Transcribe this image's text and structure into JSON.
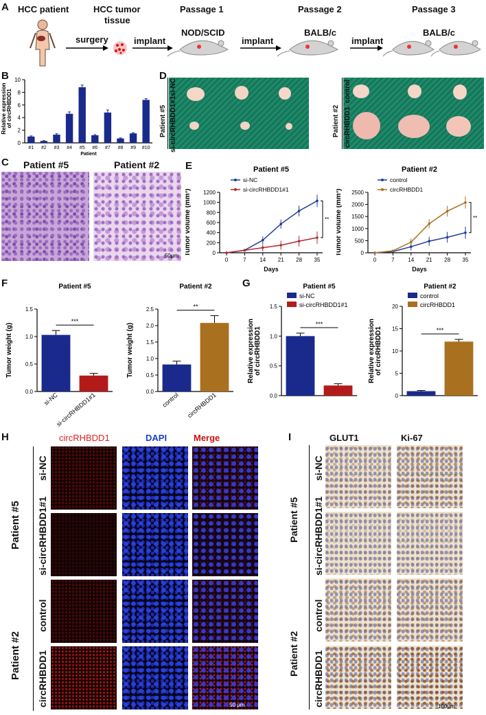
{
  "panels": {
    "a": "A",
    "b": "B",
    "c": "C",
    "d": "D",
    "e": "E",
    "f": "F",
    "g": "G",
    "h": "H",
    "i": "I"
  },
  "workflow": {
    "hcc_patient": "HCC patient",
    "hcc_tumor_tissue_1": "HCC tumor",
    "hcc_tumor_tissue_2": "tissue",
    "surgery": "surgery",
    "implant": "implant",
    "passage1": "Passage 1",
    "passage2": "Passage 2",
    "passage3": "Passage 3",
    "mouse1": "NOD/SCID",
    "mouse2": "BALB/c",
    "mouse3": "BALB/c"
  },
  "d_labels": {
    "patient5": "Patient #5",
    "sinc": "si-NC",
    "sicirc": "si-circRHBDD1#1",
    "patient2": "Patient #2",
    "control": "control",
    "circ": "circRHBDD1"
  },
  "c_labels": {
    "patient5": "Patient #5",
    "patient2": "Patient #2",
    "scale": "50μm"
  },
  "h_labels": {
    "col1": "circRHBDD1",
    "col2": "DAPI",
    "col3": "Merge",
    "patient5": "Patient #5",
    "patient2": "Patient #2",
    "row1": "si-NC",
    "row2": "si-circRHBDD1#1",
    "row3": "control",
    "row4": "circRHBDD1",
    "scale": "50 μm"
  },
  "i_labels": {
    "col1": "GLUT1",
    "col2": "Ki-67",
    "patient5": "Patient #5",
    "patient2": "Patient #2",
    "row1": "si-NC",
    "row2": "si-circRHBDD1#1",
    "row3": "control",
    "row4": "circRHBDD1",
    "scale": "100μm"
  },
  "colors": {
    "navy": "#1a2a8c",
    "red": "#b31b1b",
    "gold": "#a9701f",
    "blue_line": "#1f3d99",
    "red_line": "#b0282d"
  },
  "chart_data": [
    {
      "id": "B",
      "type": "bar",
      "ylabel": "Relative expression of circRHBDD1",
      "xlabel": "Patient",
      "categories": [
        "#1",
        "#2",
        "#3",
        "#4",
        "#5",
        "#6",
        "#7",
        "#8",
        "#9",
        "#10"
      ],
      "values": [
        1.0,
        0.3,
        1.3,
        4.6,
        8.8,
        1.2,
        4.8,
        0.7,
        1.5,
        6.8
      ],
      "errors": [
        0.1,
        0.05,
        0.15,
        0.3,
        0.35,
        0.1,
        0.4,
        0.08,
        0.1,
        0.2
      ],
      "ylim": [
        0,
        10
      ],
      "yticks": [
        "0",
        "2",
        "4",
        "6",
        "8",
        "10"
      ]
    },
    {
      "id": "E1",
      "type": "line",
      "title": "Patient #5",
      "xlabel": "Days",
      "ylabel": "Tumor volume (mm³)",
      "x": [
        0,
        7,
        14,
        21,
        28,
        35
      ],
      "series": [
        {
          "name": "si-NC",
          "values": [
            0,
            50,
            250,
            570,
            830,
            1030
          ]
        },
        {
          "name": "si-circRHBDD1#1",
          "values": [
            0,
            50,
            100,
            150,
            230,
            300
          ]
        }
      ],
      "ylim": [
        0,
        1200
      ],
      "yticks": [
        "0",
        "200",
        "400",
        "600",
        "800",
        "1000",
        "1200"
      ],
      "annotation": "**"
    },
    {
      "id": "E2",
      "type": "line",
      "title": "Patient #2",
      "xlabel": "Days",
      "ylabel": "Tumor volume (mm³)",
      "x": [
        0,
        7,
        14,
        21,
        28,
        35
      ],
      "series": [
        {
          "name": "control",
          "values": [
            0,
            50,
            250,
            480,
            640,
            830
          ]
        },
        {
          "name": "circRHBDD1",
          "values": [
            0,
            80,
            440,
            1200,
            1720,
            2080
          ]
        }
      ],
      "ylim": [
        0,
        2500
      ],
      "yticks": [
        "0",
        "500",
        "1000",
        "1500",
        "2000",
        "2500"
      ],
      "annotation": "**"
    },
    {
      "id": "F1",
      "type": "bar",
      "title": "Patient #5",
      "ylabel": "Tumor weight (g)",
      "categories": [
        "si-NC",
        "si-circRHBDD1#1"
      ],
      "values": [
        1.03,
        0.29
      ],
      "errors": [
        0.08,
        0.04
      ],
      "ylim": [
        0,
        1.5
      ],
      "yticks": [
        "0.0",
        "0.5",
        "1.0",
        "1.5"
      ],
      "annotation": "***"
    },
    {
      "id": "F2",
      "type": "bar",
      "title": "Patient #2",
      "ylabel": "Tumor weight (g)",
      "categories": [
        "control",
        "circRHBDD1"
      ],
      "values": [
        0.82,
        2.08
      ],
      "errors": [
        0.1,
        0.22
      ],
      "ylim": [
        0,
        2.5
      ],
      "yticks": [
        "0.0",
        "0.5",
        "1.0",
        "1.5",
        "2.0",
        "2.5"
      ],
      "annotation": "**"
    },
    {
      "id": "G1",
      "type": "bar",
      "title": "Patient #5",
      "ylabel": "Relative expression of circRHBDD1",
      "categories": [
        "si-NC",
        "si-circRHBDD1#1"
      ],
      "values": [
        1.0,
        0.17
      ],
      "errors": [
        0.05,
        0.03
      ],
      "ylim": [
        0,
        1.5
      ],
      "yticks": [
        "0.0",
        "0.5",
        "1.0",
        "1.5"
      ],
      "annotation": "***",
      "legend": [
        "si-NC",
        "si-circRHBDD1#1"
      ]
    },
    {
      "id": "G2",
      "type": "bar",
      "title": "Patient #2",
      "ylabel": "Relative expression of circRHBDD1",
      "categories": [
        "control",
        "circRHBDD1"
      ],
      "values": [
        1.0,
        12.1
      ],
      "errors": [
        0.15,
        0.5
      ],
      "ylim": [
        0,
        20
      ],
      "yticks": [
        "0",
        "5",
        "10",
        "15",
        "20"
      ],
      "annotation": "***",
      "legend": [
        "control",
        "circRHBDD1"
      ]
    }
  ]
}
